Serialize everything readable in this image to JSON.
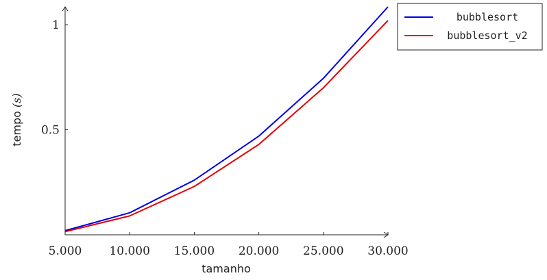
{
  "chart_data": {
    "type": "line",
    "title": "",
    "xlabel": "tamanho",
    "ylabel_text": "tempo",
    "ylabel_unit": "(s)",
    "x": [
      5000,
      10000,
      15000,
      20000,
      25000,
      30000
    ],
    "x_tick_labels": [
      "5.000",
      "10.000",
      "15.000",
      "20.000",
      "25.000",
      "30.000"
    ],
    "y_ticks": [
      0.5,
      1
    ],
    "y_tick_labels": [
      "0.5",
      "1"
    ],
    "xlim": [
      5000,
      30000
    ],
    "ylim": [
      0.0,
      1.085
    ],
    "grid": false,
    "legend_position": "top-right",
    "series": [
      {
        "name": "bubblesort",
        "color": "#0000e6",
        "values": [
          0.02,
          0.105,
          0.26,
          0.47,
          0.745,
          1.085
        ]
      },
      {
        "name": "bubblesort_v2",
        "color": "#e60000",
        "values": [
          0.015,
          0.09,
          0.23,
          0.43,
          0.7,
          1.02
        ]
      }
    ]
  }
}
